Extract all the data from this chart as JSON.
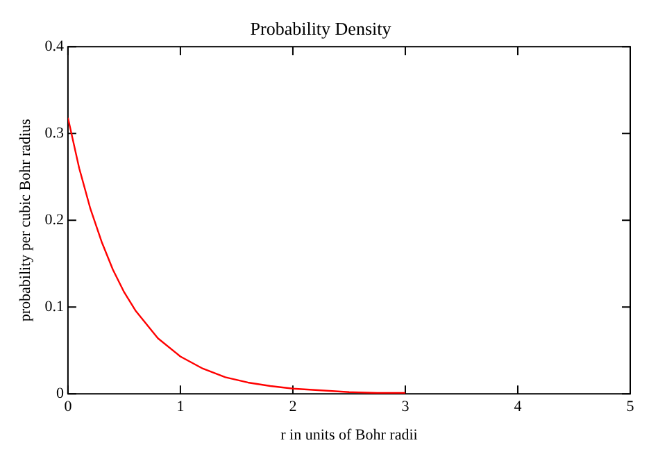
{
  "chart_data": {
    "type": "line",
    "title": "Probability Density",
    "xlabel": "r in units of Bohr radii",
    "ylabel": "probability per cubic Bohr radius",
    "x": [
      0,
      0.1,
      0.2,
      0.3,
      0.4,
      0.5,
      0.6,
      0.8,
      1,
      1.2,
      1.4,
      1.6,
      1.8,
      2,
      2.25,
      2.5,
      2.75,
      3
    ],
    "series": [
      {
        "color": "#ff0000",
        "values": [
          0.318,
          0.26,
          0.213,
          0.175,
          0.143,
          0.117,
          0.096,
          0.064,
          0.043,
          0.029,
          0.019,
          0.013,
          0.009,
          0.006,
          0.004,
          0.002,
          0.001,
          0.001
        ]
      }
    ],
    "xlim": [
      0,
      5
    ],
    "xticks": [
      0,
      1,
      2,
      3,
      4,
      5
    ],
    "ylim": [
      0,
      0.4
    ],
    "yticks": [
      0,
      0.1,
      0.2,
      0.3,
      0.4
    ],
    "grid": false,
    "legend": false,
    "marker": "none",
    "line_style": "solid"
  }
}
